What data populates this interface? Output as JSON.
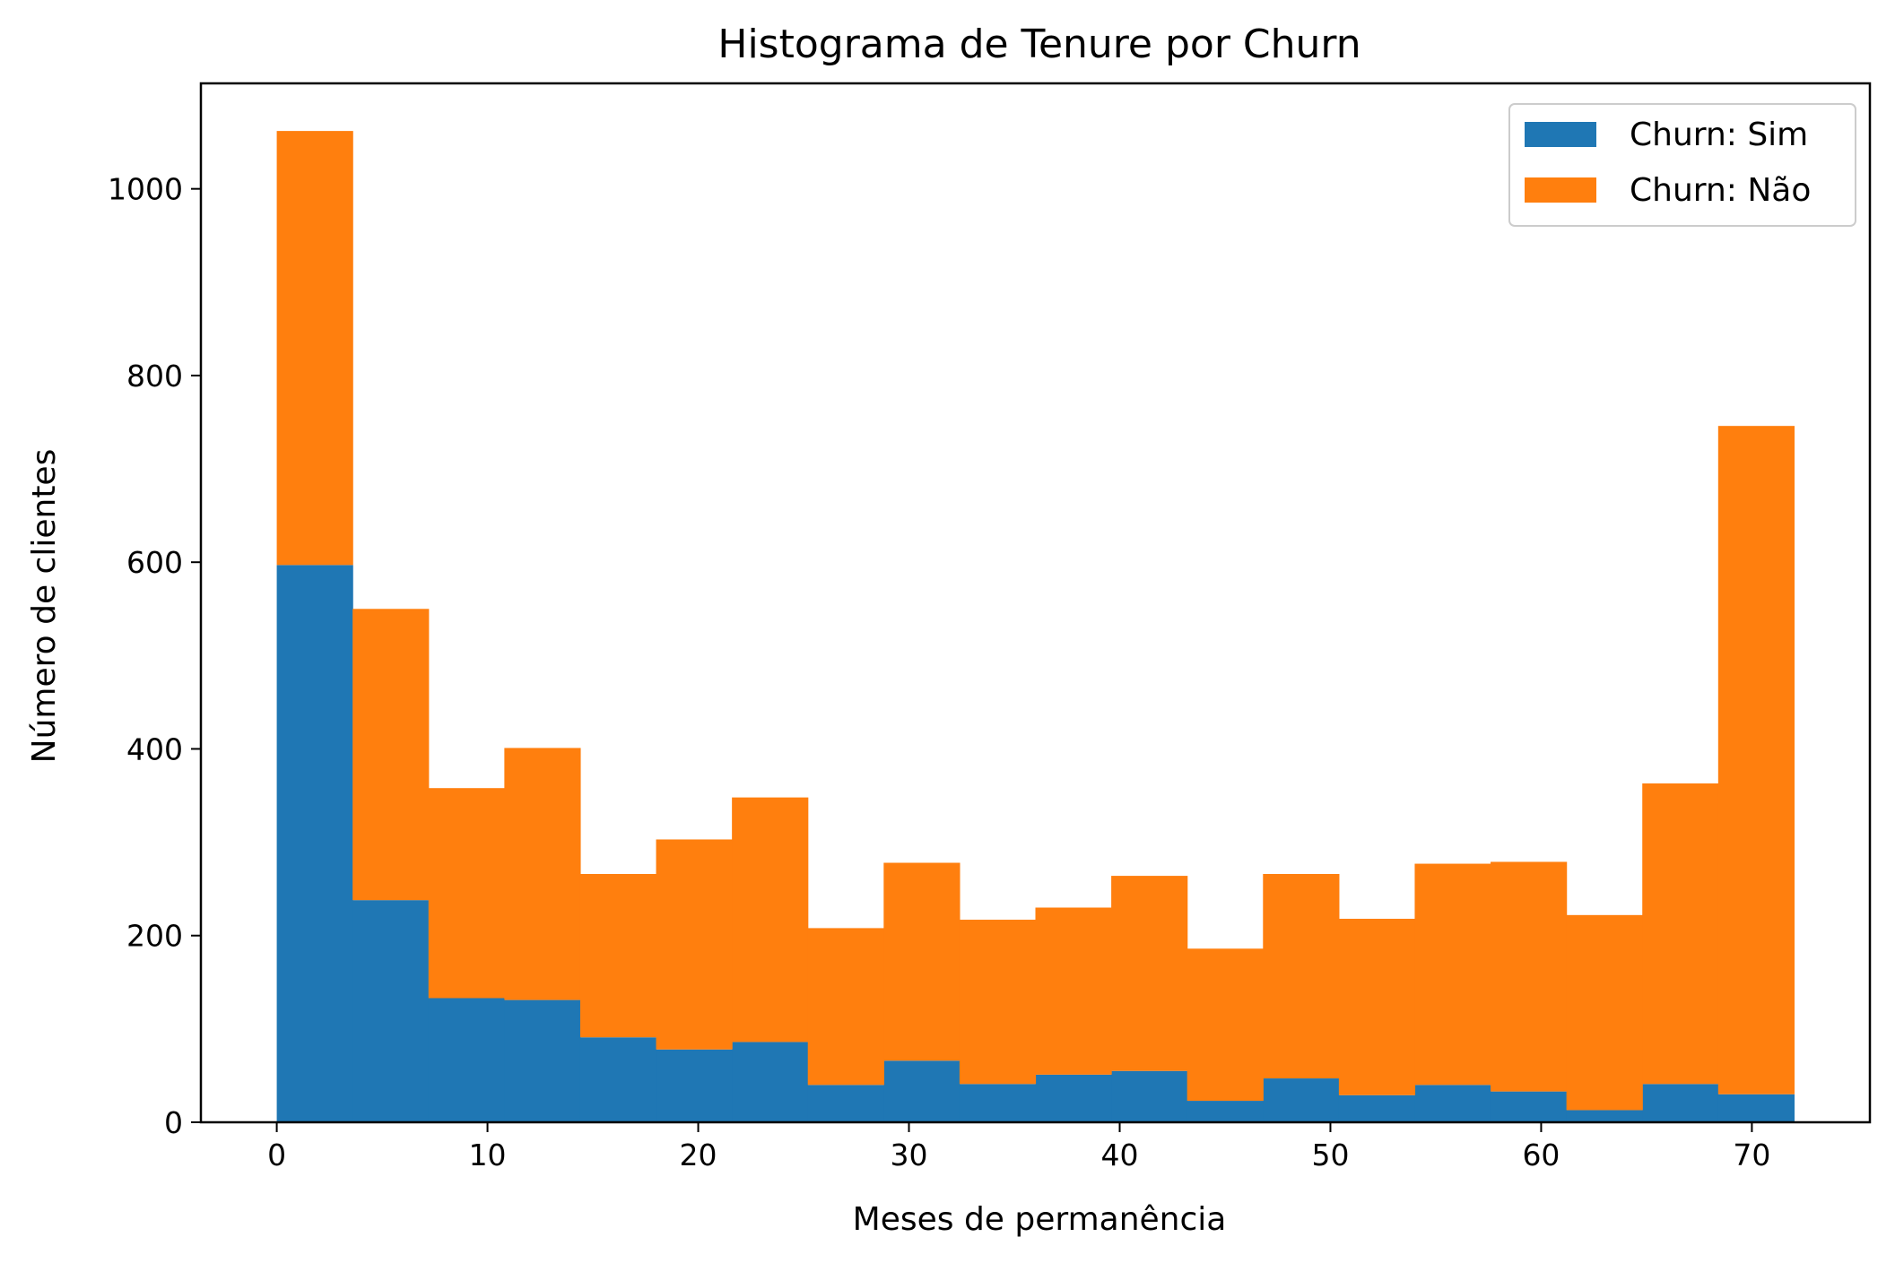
{
  "chart_data": {
    "type": "bar",
    "stacked": true,
    "histogram": true,
    "title": "Histograma de Tenure por Churn",
    "xlabel": "Meses de permanência",
    "ylabel": "Número de clientes",
    "xlim": [
      -3.6,
      75.6
    ],
    "ylim": [
      0,
      1113
    ],
    "x_ticks": [
      0,
      10,
      20,
      30,
      40,
      50,
      60,
      70
    ],
    "y_ticks": [
      0,
      200,
      400,
      600,
      800,
      1000
    ],
    "bin_edges": [
      0,
      3.6,
      7.2,
      10.8,
      14.4,
      18.0,
      21.6,
      25.2,
      28.8,
      32.4,
      36.0,
      39.6,
      43.2,
      46.8,
      50.4,
      54.0,
      57.6,
      61.2,
      64.8,
      68.4,
      72.0
    ],
    "series": [
      {
        "name": "Churn: Sim",
        "color": "#1f77b4",
        "values": [
          597,
          238,
          133,
          131,
          91,
          78,
          86,
          40,
          66,
          41,
          51,
          55,
          23,
          47,
          29,
          40,
          33,
          13,
          41,
          30
        ]
      },
      {
        "name": "Churn: Não",
        "color": "#ff7f0e",
        "values": [
          465,
          312,
          225,
          270,
          175,
          225,
          262,
          168,
          212,
          176,
          179,
          209,
          163,
          219,
          189,
          237,
          246,
          209,
          322,
          716
        ]
      }
    ],
    "legend": {
      "position": "top-right",
      "entries": [
        "Churn: Sim",
        "Churn: Não"
      ]
    },
    "grid": false
  }
}
